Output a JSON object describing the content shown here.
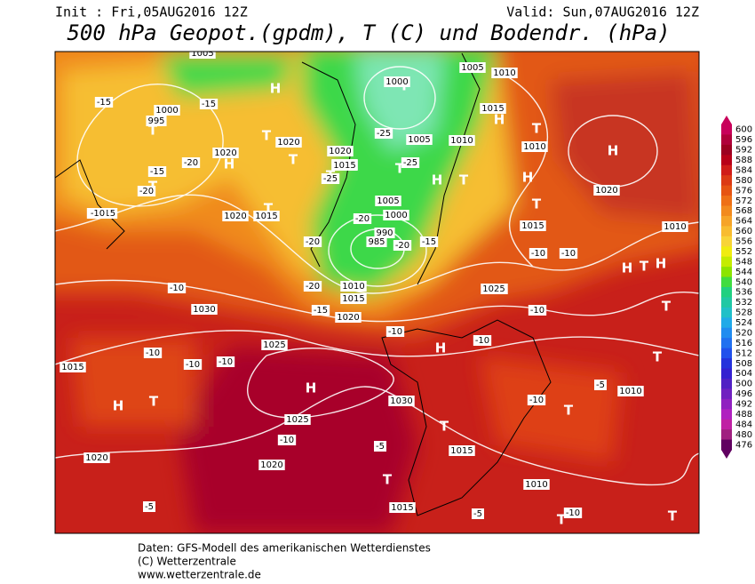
{
  "header": {
    "init": "Init : Fri,05AUG2016 12Z",
    "valid": "Valid: Sun,07AUG2016 12Z",
    "title": "500 hPa Geopot.(gpdm), T (C) und Bodendr. (hPa)"
  },
  "footer": [
    "Daten: GFS-Modell des amerikanischen Wetterdienstes",
    "(C) Wetterzentrale",
    "www.wetterzentrale.de"
  ],
  "legend": {
    "labels": [
      "600",
      "596",
      "592",
      "588",
      "584",
      "580",
      "576",
      "572",
      "568",
      "564",
      "560",
      "556",
      "552",
      "548",
      "544",
      "540",
      "536",
      "532",
      "528",
      "524",
      "520",
      "516",
      "512",
      "508",
      "504",
      "500",
      "496",
      "492",
      "488",
      "484",
      "480",
      "476"
    ],
    "colors": [
      "#c8005a",
      "#b0003a",
      "#9c0020",
      "#b80018",
      "#d01c18",
      "#dc3a14",
      "#e65412",
      "#ee7016",
      "#f28a1e",
      "#f6a428",
      "#f8bc30",
      "#f8d438",
      "#f0ec10",
      "#c4ec00",
      "#8ce400",
      "#40dc40",
      "#20d080",
      "#20c8a4",
      "#20c0c8",
      "#20aae8",
      "#208cf0",
      "#2070f0",
      "#2050ec",
      "#2432dc",
      "#3420d0",
      "#5020c4",
      "#7020c0",
      "#9020c0",
      "#b020c0",
      "#c020a4",
      "#a02080",
      "#600060"
    ]
  },
  "map": {
    "centers": [
      "H",
      "T",
      "T",
      "H",
      "T",
      "T",
      "T",
      "T",
      "T",
      "T",
      "H",
      "T",
      "H",
      "T",
      "H",
      "T",
      "H",
      "H",
      "T",
      "H",
      "T",
      "H",
      "H",
      "H",
      "T",
      "T",
      "T",
      "T",
      "T",
      "T",
      "T"
    ],
    "isobars": [
      "1005",
      "995",
      "1000",
      "1020",
      "1020",
      "1015",
      "1020",
      "1015",
      "1005",
      "1010",
      "1015",
      "1010",
      "1005",
      "1010",
      "1000",
      "1015",
      "1020",
      "1005",
      "1000",
      "990",
      "985",
      "1010",
      "1015",
      "1020",
      "1025",
      "1030",
      "1025",
      "1030",
      "1025",
      "1020",
      "1015",
      "1010",
      "1015",
      "1020",
      "1015",
      "1010",
      "1020",
      "1025",
      "1015",
      "1010"
    ],
    "temps": [
      "-15",
      "-15",
      "-20",
      "-15",
      "-20",
      "-15",
      "-25",
      "-25",
      "-25",
      "-20",
      "-20",
      "-15",
      "-20",
      "-20",
      "-15",
      "-10",
      "-10",
      "-10",
      "-10",
      "-10",
      "-10",
      "-10",
      "-10",
      "-10",
      "-10",
      "-10",
      "-5",
      "-5",
      "-5",
      "-5",
      "-10",
      "-15",
      "-10"
    ]
  }
}
